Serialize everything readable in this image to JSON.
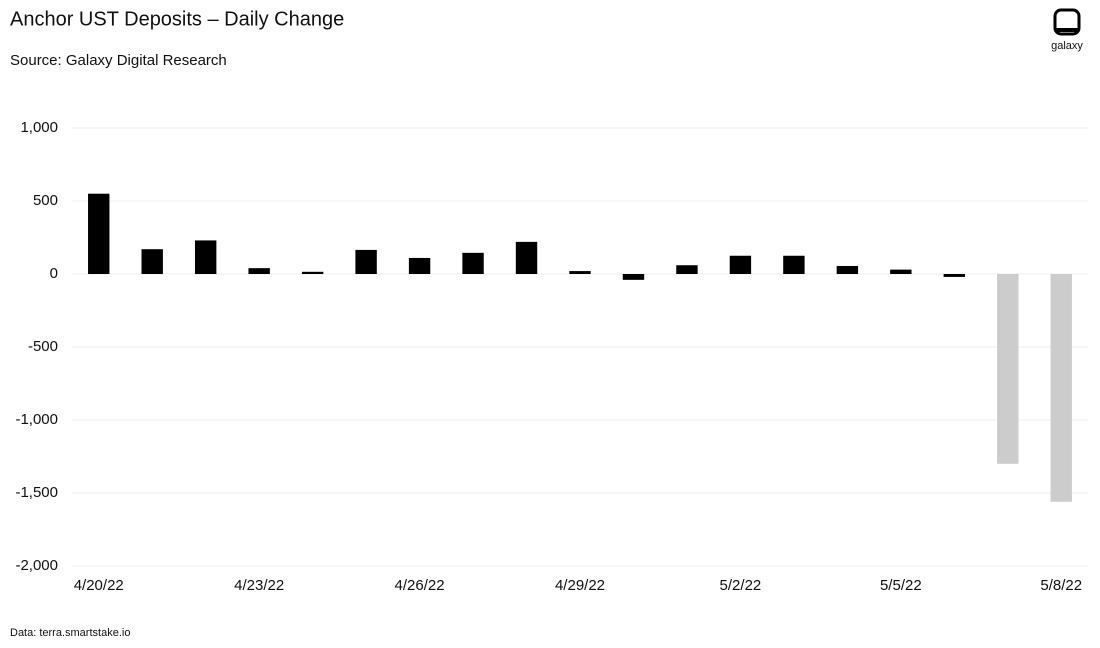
{
  "chart_data": {
    "type": "bar",
    "title": "Anchor UST Deposits – Daily Change",
    "subtitle": "Source: Galaxy Digital Research",
    "source": "Data: terra.smartstake.io",
    "logo": "galaxy",
    "categories": [
      "4/20/22",
      null,
      null,
      "4/23/22",
      null,
      null,
      "4/26/22",
      null,
      null,
      "4/29/22",
      null,
      null,
      "5/2/22",
      null,
      null,
      "5/5/22",
      null,
      null,
      "5/8/22"
    ],
    "values": [
      550,
      170,
      230,
      40,
      15,
      165,
      110,
      145,
      220,
      20,
      -40,
      60,
      125,
      125,
      55,
      30,
      -20,
      -1300,
      -1560
    ],
    "colors": [
      "#000000",
      "#000000",
      "#000000",
      "#000000",
      "#000000",
      "#000000",
      "#000000",
      "#000000",
      "#000000",
      "#000000",
      "#000000",
      "#000000",
      "#000000",
      "#000000",
      "#000000",
      "#000000",
      "#000000",
      "#cccccc",
      "#cccccc"
    ],
    "ylim": [
      -2000,
      1000
    ],
    "yticks": [
      {
        "value": -2000,
        "label": "-2,000"
      },
      {
        "value": -1500,
        "label": "-1,500"
      },
      {
        "value": -1000,
        "label": "-1,000"
      },
      -500,
      0,
      500,
      {
        "value": 1000,
        "label": "1,000"
      }
    ],
    "grid": true
  }
}
